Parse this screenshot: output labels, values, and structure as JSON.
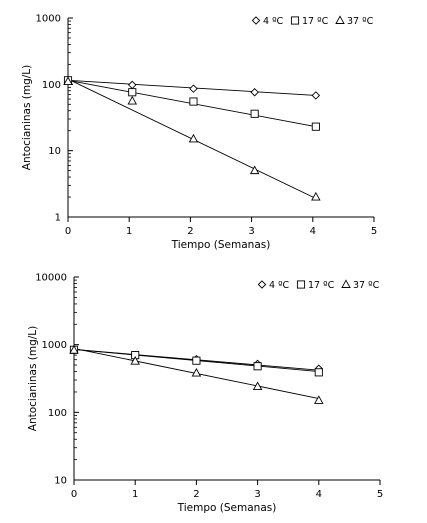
{
  "chart_data": [
    {
      "type": "scatter",
      "xlabel": "Tiempo (Semanas)",
      "ylabel": "Antocianinas (mg/L)",
      "xlim": [
        0,
        5
      ],
      "ylim": [
        1,
        1000
      ],
      "yscale": "log",
      "x_ticks": [
        "0",
        "1",
        "2",
        "3",
        "4",
        "5"
      ],
      "y_ticks": [
        "1",
        "10",
        "100",
        "1000"
      ],
      "y_tick_values": [
        1,
        10,
        100,
        1000
      ],
      "legend_position": "top-right",
      "grid": false,
      "series": [
        {
          "name": "4 ºC",
          "marker": "diamond",
          "x": [
            0,
            1.05,
            2.05,
            3.05,
            4.05
          ],
          "y": [
            115,
            98,
            86,
            76,
            68
          ],
          "fit": [
            115,
            68
          ]
        },
        {
          "name": "17 ºC",
          "marker": "square",
          "x": [
            0,
            1.05,
            2.05,
            3.05,
            4.05
          ],
          "y": [
            115,
            76,
            55,
            36,
            23
          ],
          "fit": [
            115,
            23
          ]
        },
        {
          "name": "37 ºC",
          "marker": "triangle",
          "x": [
            0,
            1.05,
            2.05,
            3.05,
            4.05
          ],
          "y": [
            110,
            56,
            15,
            5,
            2
          ],
          "fit": [
            120,
            1.9
          ]
        }
      ]
    },
    {
      "type": "scatter",
      "xlabel": "Tiempo (Semanas)",
      "ylabel": "Antocianinas (mg/L)",
      "xlim": [
        0,
        5
      ],
      "ylim": [
        10,
        10000
      ],
      "yscale": "log",
      "x_ticks": [
        "0",
        "1",
        "2",
        "3",
        "4",
        "5"
      ],
      "y_ticks": [
        "10",
        "100",
        "1000",
        "10000"
      ],
      "y_tick_values": [
        10,
        100,
        1000,
        10000
      ],
      "legend_position": "top-right",
      "grid": false,
      "series": [
        {
          "name": "4 ºC",
          "marker": "diamond",
          "x": [
            0,
            1,
            2,
            3,
            4
          ],
          "y": [
            850,
            700,
            610,
            520,
            440
          ],
          "fit": [
            850,
            420
          ]
        },
        {
          "name": "17 ºC",
          "marker": "square",
          "x": [
            0,
            1,
            2,
            3,
            4
          ],
          "y": [
            840,
            700,
            580,
            480,
            390
          ],
          "fit": [
            850,
            400
          ]
        },
        {
          "name": "37 ºC",
          "marker": "triangle",
          "x": [
            0,
            1,
            2,
            3,
            4
          ],
          "y": [
            830,
            570,
            380,
            240,
            150
          ],
          "fit": [
            880,
            160
          ]
        }
      ]
    }
  ]
}
